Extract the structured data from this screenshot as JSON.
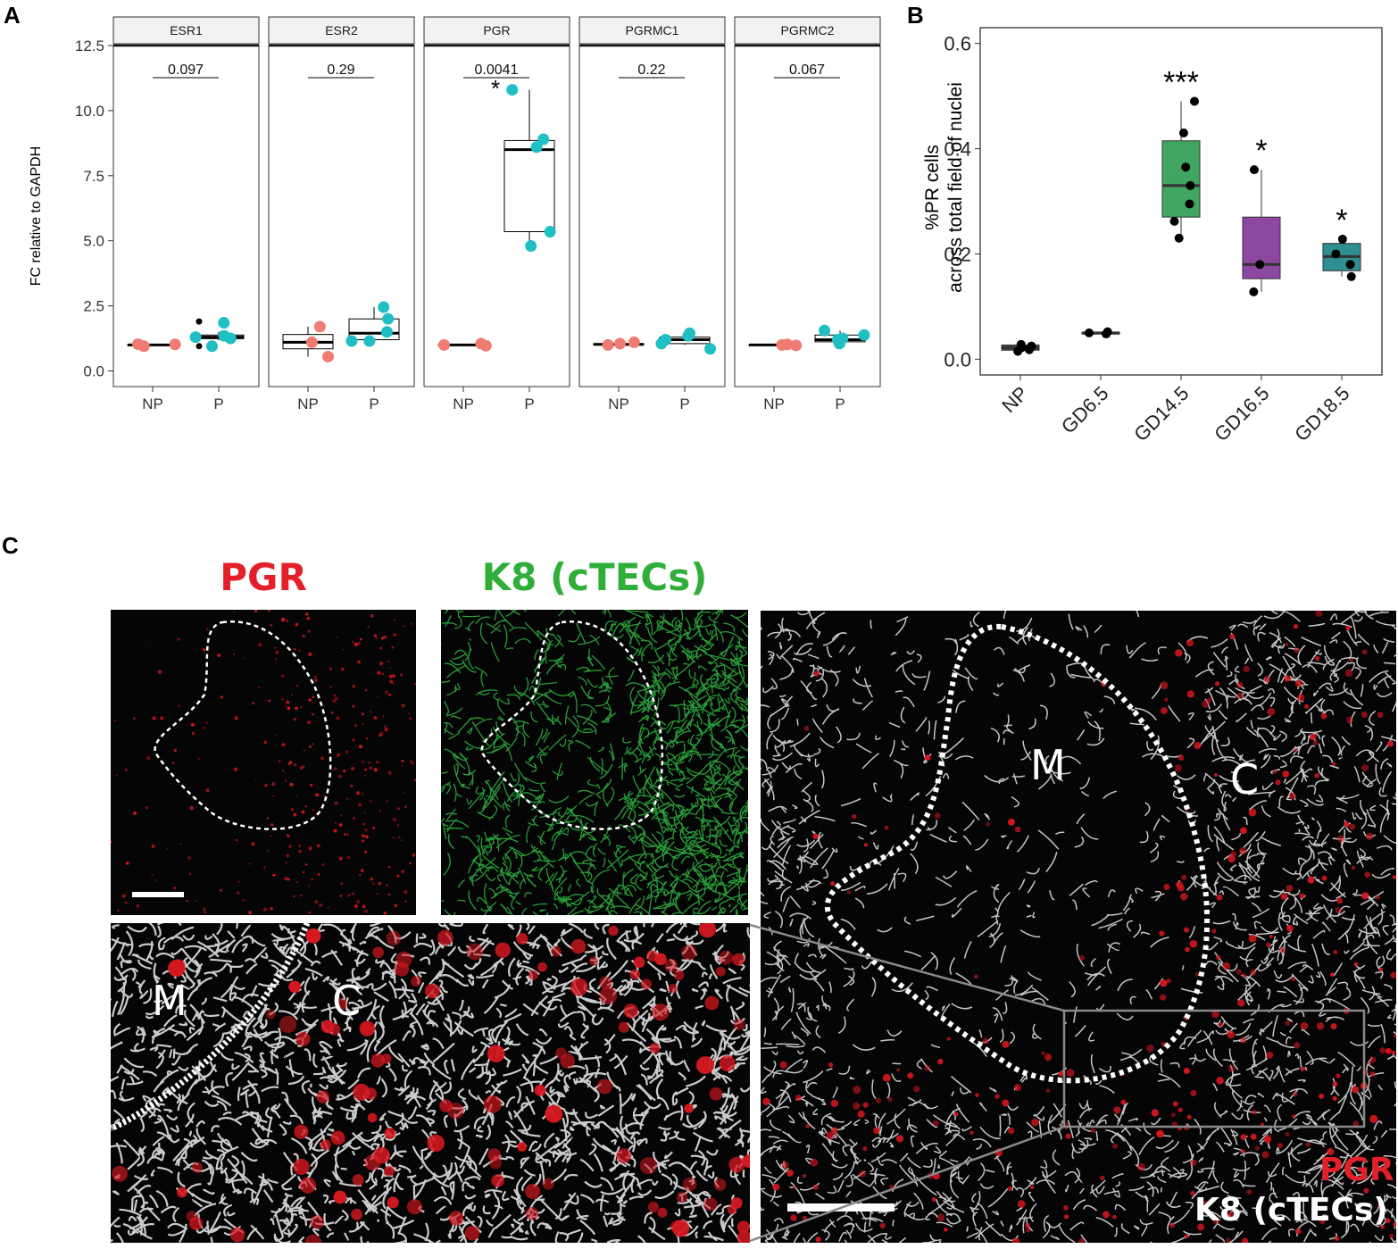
{
  "panels": {
    "a": "A",
    "b": "B",
    "c": "C"
  },
  "chart_data": [
    {
      "type": "box",
      "ylabel": "FC relative to GAPDH",
      "ylim": [
        -0.6,
        12.5
      ],
      "yticks": [
        "0.0",
        "2.5",
        "5.0",
        "7.5",
        "10.0",
        "12.5"
      ],
      "ytick_values": [
        0,
        2.5,
        5,
        7.5,
        10,
        12.5
      ],
      "categories": [
        "NP",
        "P"
      ],
      "colors": {
        "NP": "#f07b72",
        "P": "#1fbfc3"
      },
      "facets": [
        {
          "name": "ESR1",
          "pvalue": "0.097",
          "star": "",
          "NP": {
            "box": [
              1.0,
              1.0,
              1.0,
              1.0,
              1.0
            ],
            "points": [
              0.95,
              1.03,
              1.02
            ]
          },
          "P": {
            "box": [
              1.18,
              1.24,
              1.3,
              1.38,
              1.5
            ],
            "points": [
              0.95,
              1.3,
              1.25,
              1.85,
              1.35
            ],
            "outliers": [
              1.9,
              0.95
            ]
          }
        },
        {
          "name": "ESR2",
          "pvalue": "0.29",
          "star": "",
          "NP": {
            "box": [
              0.55,
              0.85,
              1.1,
              1.4,
              1.7
            ],
            "points": [
              1.7,
              1.1,
              0.55
            ]
          },
          "P": {
            "box": [
              1.15,
              1.2,
              1.45,
              2.0,
              2.45
            ],
            "points": [
              2.0,
              1.15,
              2.45,
              1.5,
              1.15
            ]
          }
        },
        {
          "name": "PGR",
          "pvalue": "0.0041",
          "star": "*",
          "NP": {
            "box": [
              1.0,
              1.0,
              1.0,
              1.0,
              1.0
            ],
            "points": [
              1.0,
              0.97,
              1.05
            ]
          },
          "P": {
            "box": [
              4.8,
              5.35,
              8.5,
              8.85,
              10.8
            ],
            "points": [
              10.8,
              8.9,
              8.6,
              5.35,
              4.8
            ]
          }
        },
        {
          "name": "PGRMC1",
          "pvalue": "0.22",
          "star": "",
          "NP": {
            "box": [
              1.0,
              1.0,
              1.02,
              1.05,
              1.1
            ],
            "points": [
              1.05,
              1.0,
              1.1
            ]
          },
          "P": {
            "box": [
              1.0,
              1.05,
              1.2,
              1.3,
              1.45
            ],
            "points": [
              1.35,
              1.2,
              1.45,
              1.05,
              0.85
            ]
          }
        },
        {
          "name": "PGRMC2",
          "pvalue": "0.067",
          "star": "",
          "NP": {
            "box": [
              1.0,
              1.0,
              1.0,
              1.0,
              1.0
            ],
            "points": [
              0.98,
              1.0,
              1.02
            ]
          },
          "P": {
            "box": [
              1.05,
              1.12,
              1.2,
              1.38,
              1.55
            ],
            "points": [
              1.38,
              1.05,
              1.25,
              1.55,
              1.2
            ]
          }
        }
      ]
    },
    {
      "type": "box",
      "ylabel": "%PR cells\nacross total field of nuclei",
      "ylim": [
        -0.03,
        0.63
      ],
      "yticks": [
        "0.0",
        "0.2",
        "0.4",
        "0.6"
      ],
      "ytick_values": [
        0,
        0.2,
        0.4,
        0.6
      ],
      "categories": [
        "NP",
        "GD6.5",
        "GD14.5",
        "GD16.5",
        "GD18.5"
      ],
      "series": [
        {
          "category": "NP",
          "color": "#4b4b4b",
          "box": [
            0.015,
            0.017,
            0.022,
            0.027,
            0.03
          ],
          "points": [
            0.015,
            0.025,
            0.028,
            0.018,
            0.022
          ],
          "star": ""
        },
        {
          "category": "GD6.5",
          "color": "#4b4b4b",
          "box": [
            0.048,
            0.049,
            0.05,
            0.051,
            0.052
          ],
          "points": [
            0.048,
            0.052,
            0.05
          ],
          "star": ""
        },
        {
          "category": "GD14.5",
          "color": "#3fa561",
          "box": [
            0.23,
            0.27,
            0.33,
            0.415,
            0.49
          ],
          "points": [
            0.49,
            0.43,
            0.365,
            0.33,
            0.295,
            0.262,
            0.23
          ],
          "star": "***"
        },
        {
          "category": "GD16.5",
          "color": "#8e47a2",
          "box": [
            0.128,
            0.153,
            0.18,
            0.27,
            0.36
          ],
          "points": [
            0.36,
            0.18,
            0.128
          ],
          "star": "*"
        },
        {
          "category": "GD18.5",
          "color": "#2e8f91",
          "box": [
            0.157,
            0.168,
            0.195,
            0.22,
            0.228
          ],
          "points": [
            0.228,
            0.2,
            0.18,
            0.157
          ],
          "star": "*"
        }
      ]
    }
  ],
  "panel_c": {
    "title_pgr": "PGR",
    "title_k8": "K8 (cTECs)",
    "label_m": "M",
    "label_c": "C",
    "legend_pgr": "PGR",
    "legend_k8": "K8 (cTECs)",
    "colors": {
      "pgr": "#e3202a",
      "k8_green": "#2fae3a",
      "k8_white": "#ffffff"
    }
  }
}
